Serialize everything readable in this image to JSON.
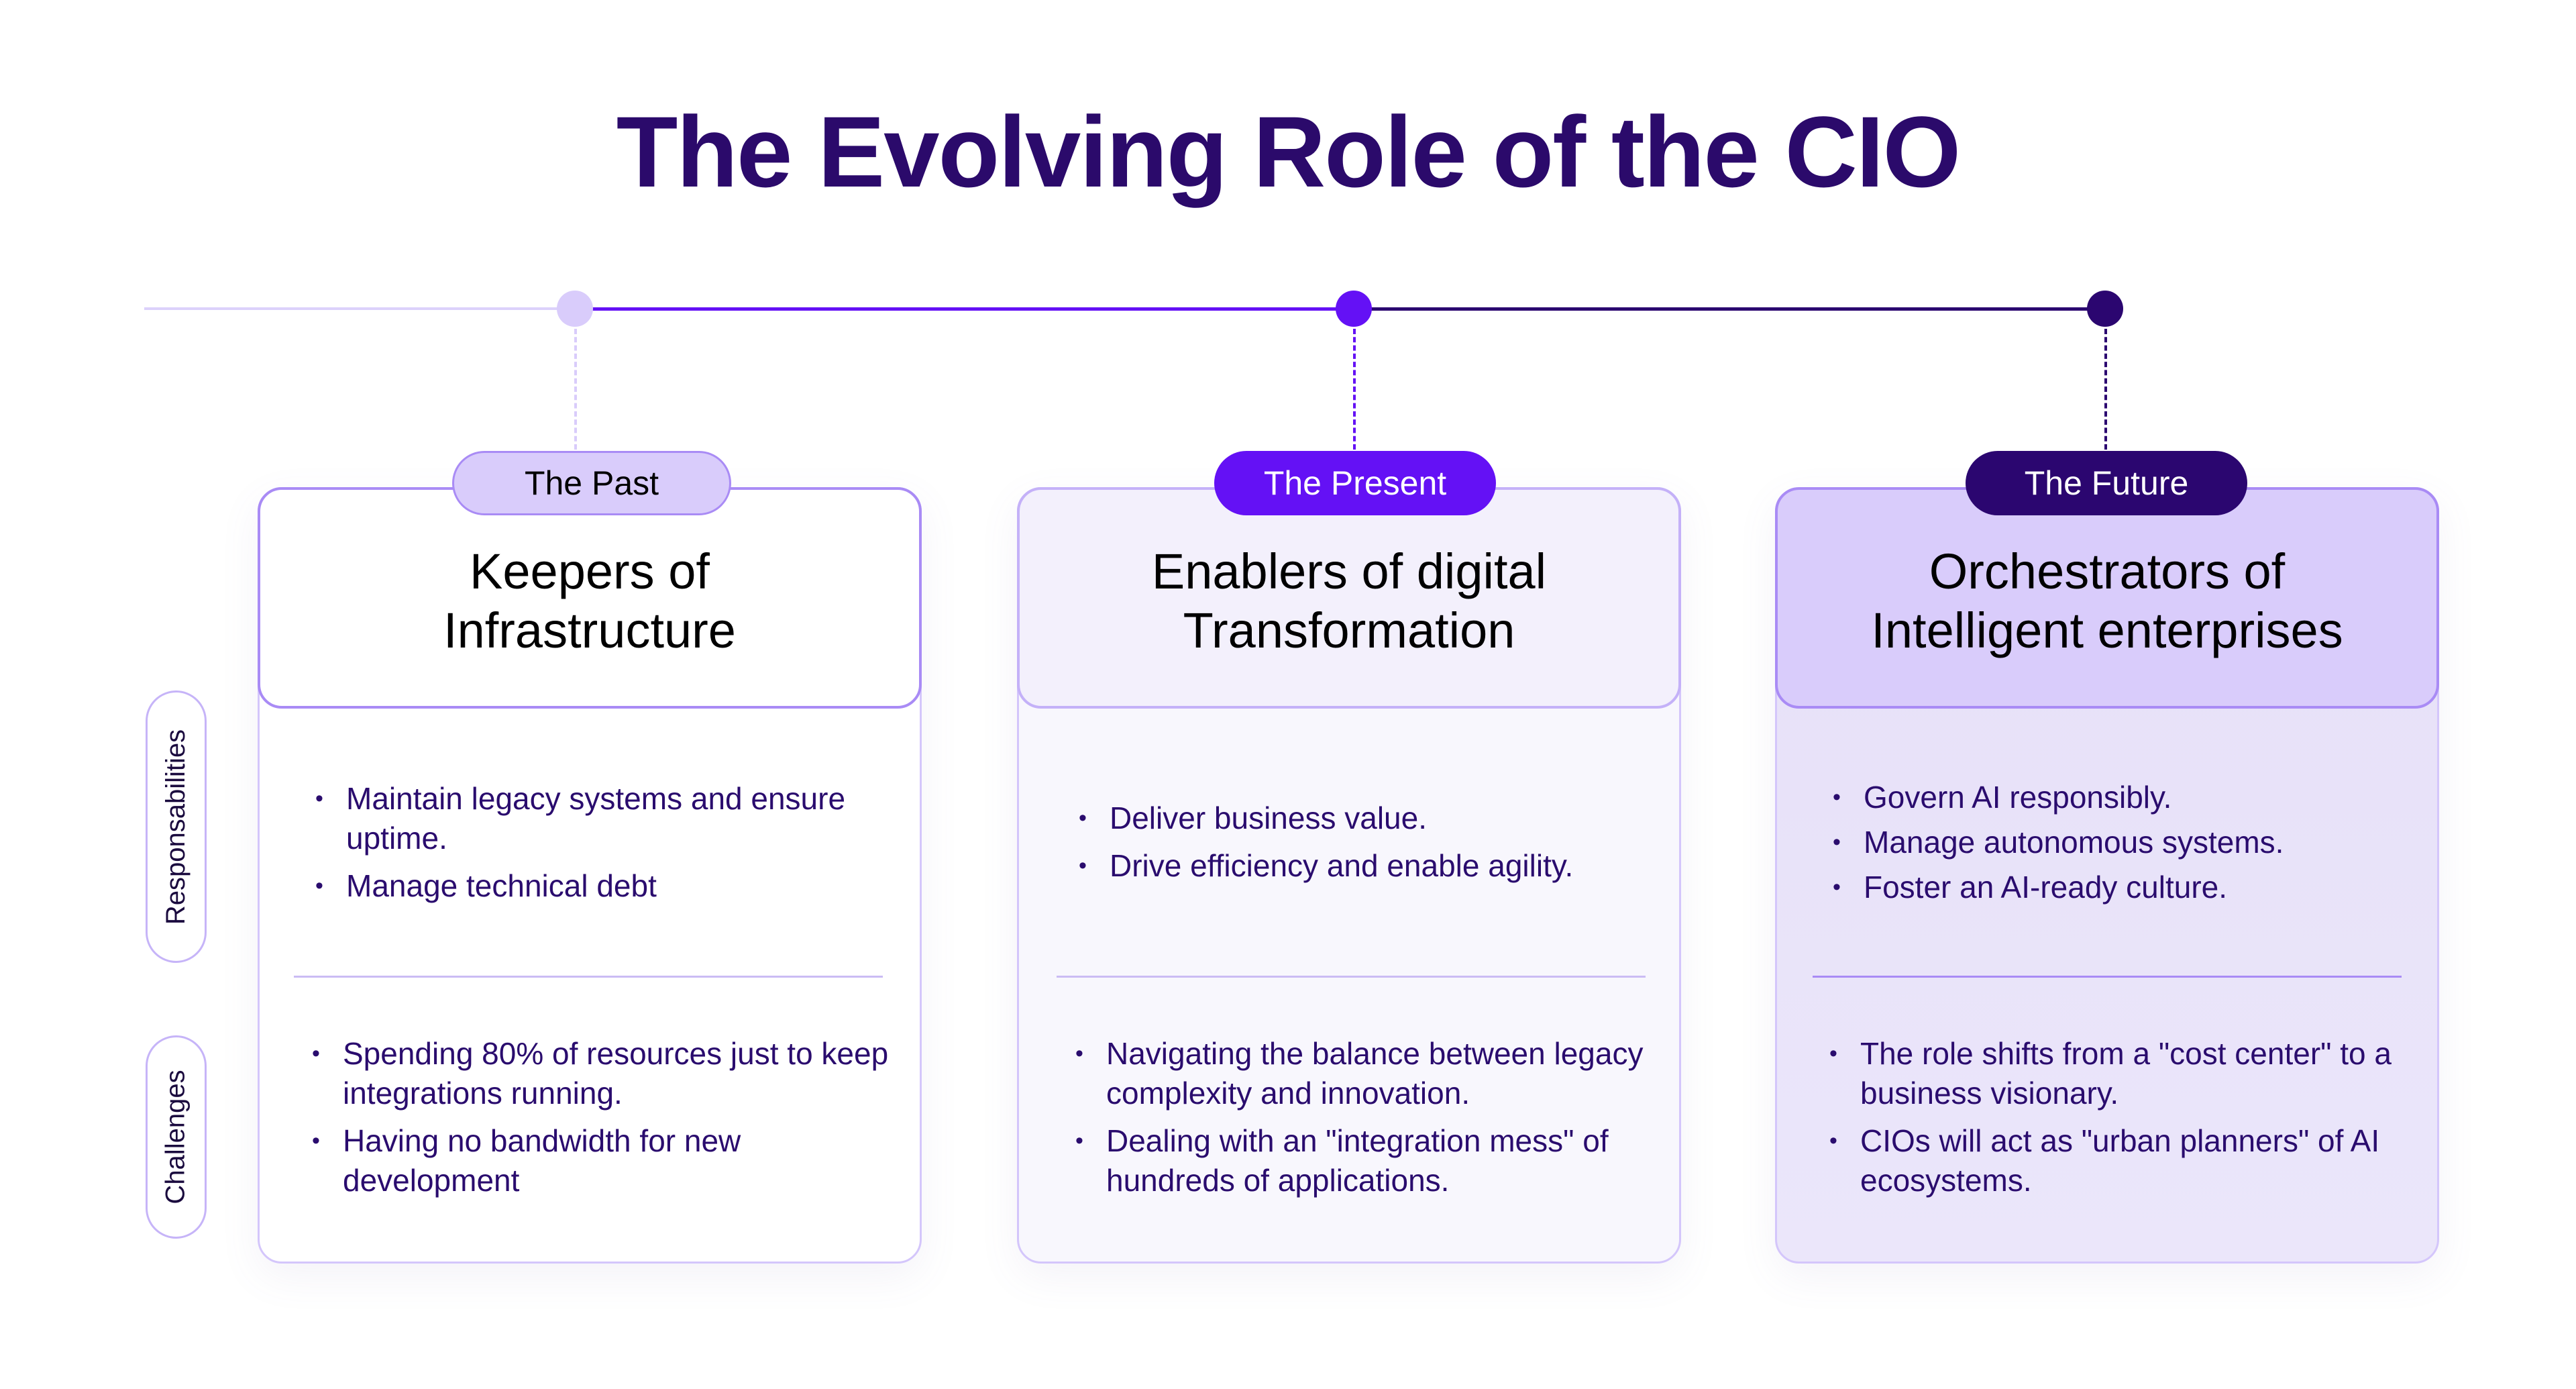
{
  "title": "The Evolving Role of the CIO",
  "colors": {
    "past": "#d9ccfb",
    "present": "#6411f5",
    "future": "#2b0670",
    "border": "#a98bf5",
    "text": "#2a0c6e"
  },
  "row_labels": {
    "responsibilities": "Responsabilities",
    "challenges": "Challenges"
  },
  "eras": [
    {
      "label": "The Past",
      "heading": [
        "Keepers of",
        "Infrastructure"
      ],
      "responsibilities": [
        "Maintain legacy systems and ensure uptime.",
        "Manage technical debt"
      ],
      "challenges": [
        "Spending 80% of resources just to keep integrations running.",
        "Having no bandwidth for new development"
      ]
    },
    {
      "label": "The Present",
      "heading": [
        "Enablers of digital",
        "Transformation"
      ],
      "responsibilities": [
        "Deliver business value.",
        "Drive efficiency and enable agility."
      ],
      "challenges": [
        "Navigating the balance between legacy complexity and innovation.",
        "Dealing with an \"integration mess\" of hundreds of applications."
      ]
    },
    {
      "label": "The Future",
      "heading": [
        "Orchestrators of",
        "Intelligent enterprises"
      ],
      "responsibilities": [
        "Govern AI responsibly.",
        "Manage autonomous systems.",
        "Foster an AI-ready culture."
      ],
      "challenges": [
        "The role shifts from a \"cost center\" to a business visionary.",
        "CIOs will act as \"urban planners\" of AI ecosystems."
      ]
    }
  ]
}
